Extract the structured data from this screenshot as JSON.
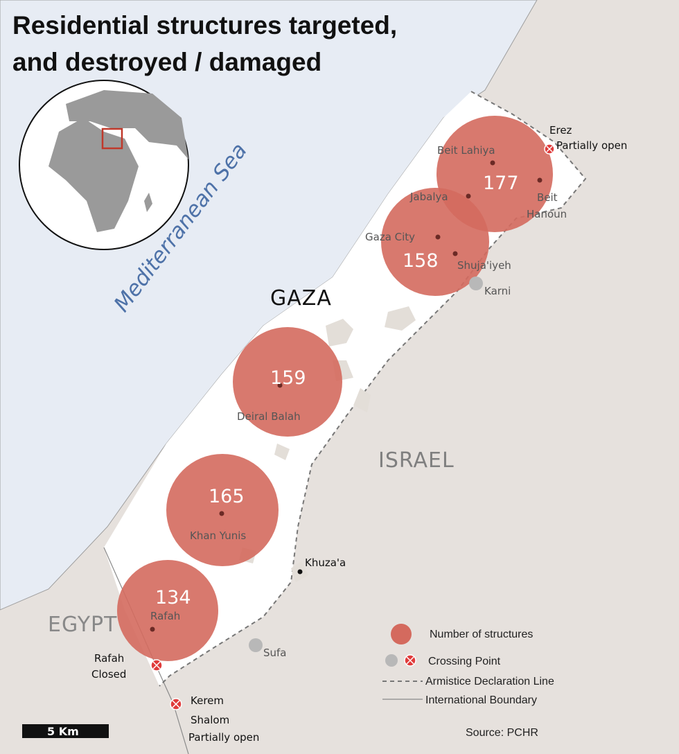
{
  "title_line1": "Residential structures targeted,",
  "title_line2": "and destroyed / damaged",
  "sea_label": "Mediterranean Sea",
  "region_labels": {
    "gaza": "GAZA",
    "israel": "ISRAEL",
    "egypt": "EGYPT"
  },
  "circles": [
    {
      "id": "north",
      "value": "177"
    },
    {
      "id": "gaza-city",
      "value": "158"
    },
    {
      "id": "deir-al-balah",
      "value": "159"
    },
    {
      "id": "khan-yunis",
      "value": "165"
    },
    {
      "id": "rafah",
      "value": "134"
    }
  ],
  "places": {
    "beit_lahiya": "Beit Lahiya",
    "jabalya": "Jabalya",
    "beit": "Beit",
    "hanoun": "Hanoun",
    "gaza_city": "Gaza City",
    "shujaiyeh": "Shuja'iyeh",
    "deir_al_balah": "Deiral Balah",
    "khan_yunis": "Khan Yunis",
    "khuzaa": "Khuza'a",
    "rafah_city": "Rafah"
  },
  "crossings": {
    "erez": "Erez",
    "erez_status": "Partially open",
    "karni": "Karni",
    "sufa": "Sufa",
    "rafah": "Rafah",
    "rafah_status": "Closed",
    "kerem1": "Kerem",
    "kerem2": "Shalom",
    "kerem_status": "Partially open"
  },
  "legend": {
    "structures": "Number of structures",
    "crossing": "Crossing Point",
    "armistice": "Armistice Declaration Line",
    "boundary": "International Boundary"
  },
  "scale_label": "5 Km",
  "source": "Source: PCHR",
  "colors": {
    "sea": "#e7ecf4",
    "land": "#e6e1dd",
    "strip": "#ffffff",
    "circle": "#d46a5e",
    "crossing_open": "#e03b3b",
    "crossing_gray": "#b8b8b8"
  }
}
